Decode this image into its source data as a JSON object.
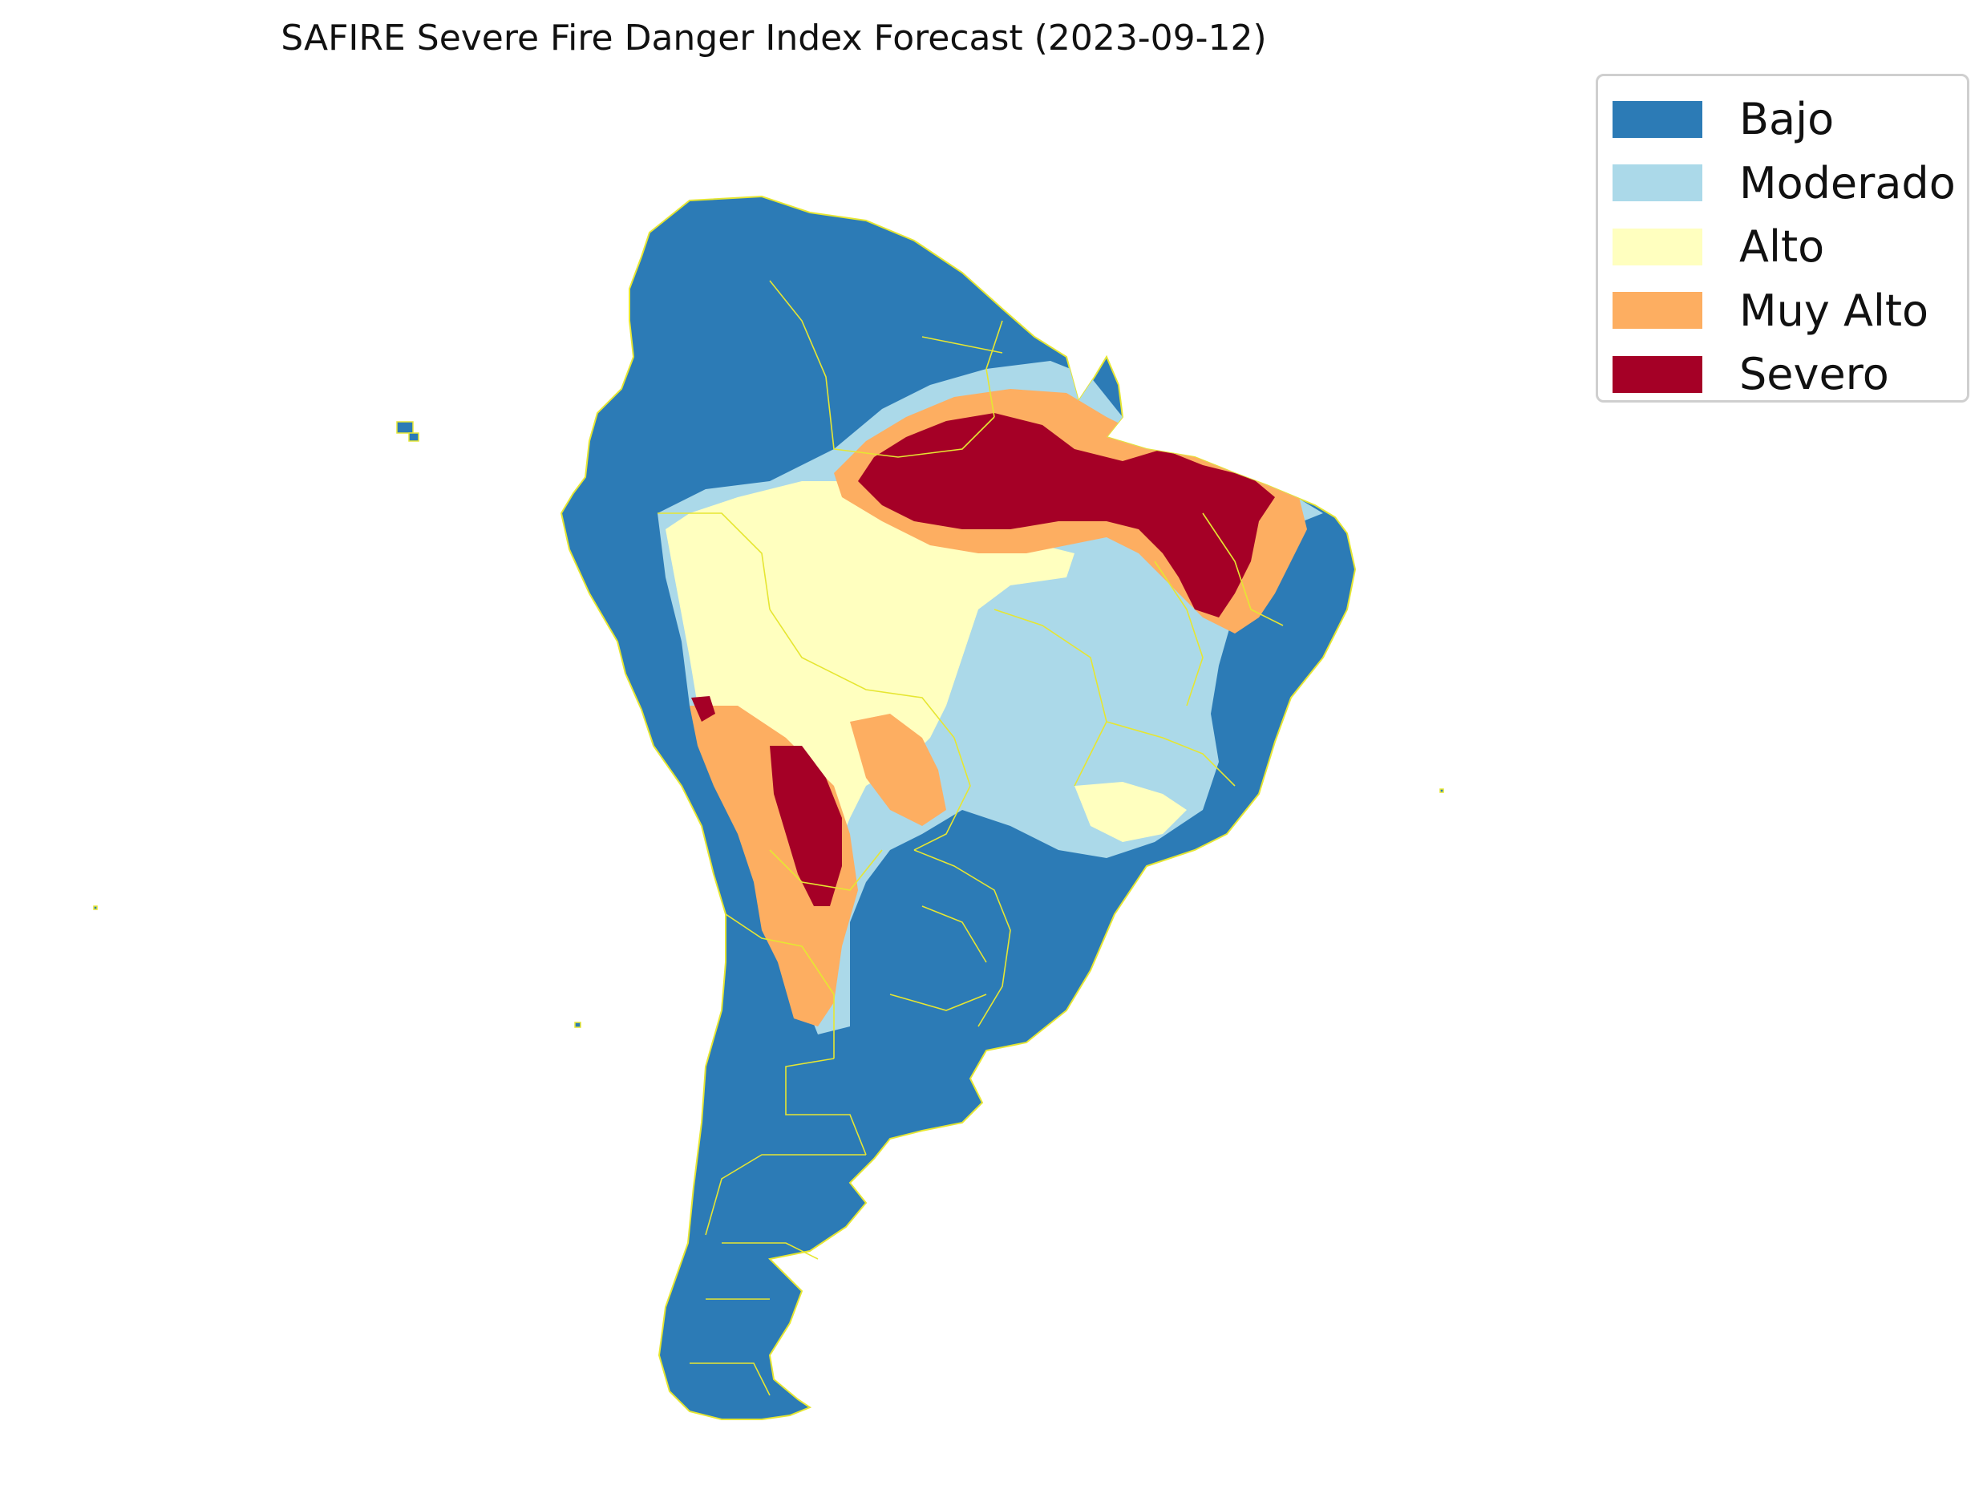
{
  "title": "SAFIRE Severe Fire Danger Index Forecast (2023-09-12)",
  "legend": {
    "items": [
      {
        "label": "Bajo",
        "color": "#2c7bb6"
      },
      {
        "label": "Moderado",
        "color": "#abd9e9"
      },
      {
        "label": "Alto",
        "color": "#ffffbf"
      },
      {
        "label": "Muy Alto",
        "color": "#fdae61"
      },
      {
        "label": "Severo",
        "color": "#a50026"
      }
    ],
    "placement": "upper-right"
  },
  "map": {
    "region": "South America",
    "border_color": "#e6e632",
    "basemap": "none"
  }
}
